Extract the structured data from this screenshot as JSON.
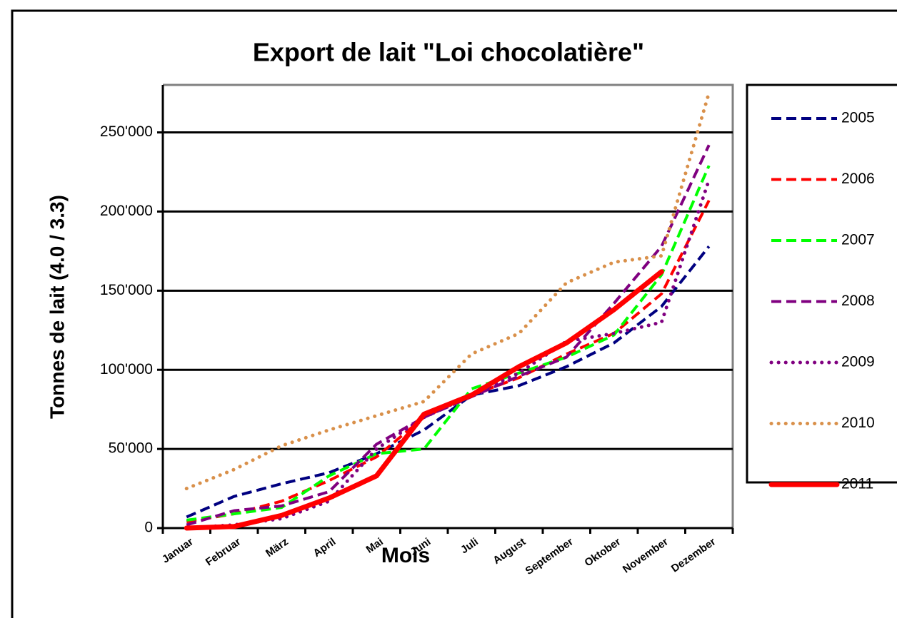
{
  "chart_data": {
    "type": "line",
    "title": "Export de lait \"Loi chocolatière\"",
    "x_label": "Mois",
    "y_label": "Tonnes de lait (4.0 / 3.3)",
    "categories": [
      "Januar",
      "Februar",
      "März",
      "April",
      "Mai",
      "Juni",
      "Juli",
      "August",
      "September",
      "Oktober",
      "November",
      "Dezember"
    ],
    "ylim": [
      0,
      280000
    ],
    "yticks": [
      0,
      {
        "value": 50000,
        "label": "50'000"
      },
      {
        "value": 100000,
        "label": "100'000"
      },
      {
        "value": 150000,
        "label": "150'000"
      },
      {
        "value": 200000,
        "label": "200'000"
      },
      {
        "value": 250000,
        "label": "250'000"
      }
    ],
    "grid": true,
    "legend": "right",
    "series": [
      {
        "name": "2005",
        "color": "#000080",
        "dash": "dashed",
        "values": [
          7000,
          20000,
          28000,
          35000,
          47000,
          62000,
          84000,
          90000,
          102000,
          117000,
          140000,
          178000
        ]
      },
      {
        "name": "2006",
        "color": "#ff0000",
        "dash": "dashed",
        "values": [
          4000,
          9000,
          17000,
          30000,
          45000,
          70000,
          84000,
          95000,
          110000,
          123000,
          148000,
          207000
        ]
      },
      {
        "name": "2007",
        "color": "#00ff00",
        "dash": "dashed",
        "values": [
          5000,
          9000,
          13000,
          33000,
          47000,
          50000,
          88000,
          98000,
          108000,
          122000,
          160000,
          229000
        ]
      },
      {
        "name": "2008",
        "color": "#800080",
        "dash": "dashed",
        "values": [
          2000,
          11000,
          14000,
          23000,
          53000,
          70000,
          83000,
          96000,
          108000,
          142000,
          178000,
          242000
        ]
      },
      {
        "name": "2009",
        "color": "#800080",
        "dash": "dotted",
        "values": [
          0,
          2000,
          6000,
          17000,
          50000,
          70000,
          84000,
          98000,
          118000,
          123000,
          130000,
          220000
        ]
      },
      {
        "name": "2010",
        "color": "#d9904a",
        "dash": "dotted",
        "values": [
          25000,
          37000,
          52000,
          62000,
          71000,
          80000,
          110000,
          123000,
          155000,
          168000,
          172000,
          275000
        ]
      },
      {
        "name": "2011",
        "color": "#ff0000",
        "dash": "solid",
        "values": [
          0,
          1000,
          8000,
          19000,
          33000,
          72000,
          84000,
          102000,
          117000,
          138000,
          162000,
          null
        ]
      }
    ]
  }
}
